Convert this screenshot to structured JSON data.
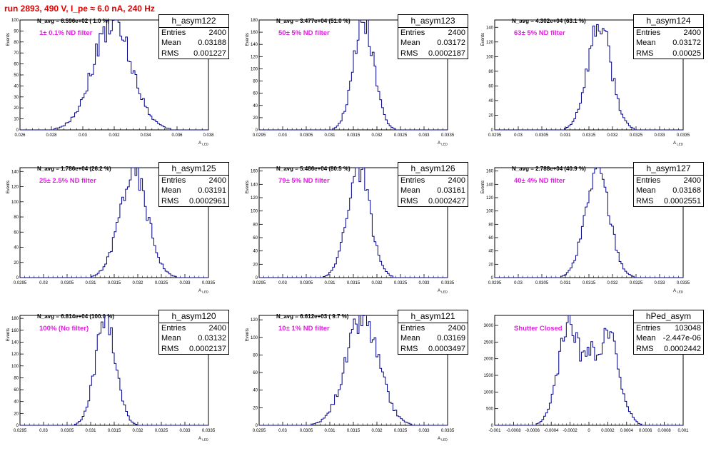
{
  "header": {
    "title": "run 2893,   490 V, I_pe ≈ 6.0 nA, 240 Hz"
  },
  "common": {
    "ylabel": "Events",
    "xlabel": "A_LED"
  },
  "colors": {
    "hist": "#00008b",
    "title": "#e00000",
    "filter": "#e020e0"
  },
  "panels": [
    {
      "name": "h_asym122",
      "entries": "2400",
      "mean": "0.03188",
      "rms": "0.001227",
      "navg": "N_avg = 6.596e+02 ( 1.0 %)",
      "filter": "1± 0.1% ND filter",
      "chart_data": {
        "type": "bar",
        "title": "h_asym122",
        "xlim": [
          0.026,
          0.038
        ],
        "ylim": [
          0,
          100
        ],
        "xticks": [
          "0.026",
          "0.028",
          "0.03",
          "0.032",
          "0.034",
          "0.036",
          "0.038"
        ],
        "yticks": [
          "0",
          "10",
          "20",
          "30",
          "40",
          "50",
          "60",
          "70",
          "80",
          "90",
          "100"
        ],
        "xlabel": "A_LED",
        "ylabel": "Events",
        "mean": 0.03188,
        "sigma": 0.001227,
        "peak": 98,
        "bins": 100,
        "seed": 122
      }
    },
    {
      "name": "h_asym123",
      "entries": "2400",
      "mean": "0.03172",
      "rms": "0.0002187",
      "navg": "N_avg = 3.477e+04 (51.0 %)",
      "filter": "50± 5% ND filter",
      "chart_data": {
        "type": "bar",
        "title": "h_asym123",
        "xlim": [
          0.0295,
          0.0335
        ],
        "ylim": [
          0,
          180
        ],
        "xticks": [
          "0.0295",
          "0.03",
          "0.0305",
          "0.031",
          "0.0315",
          "0.032",
          "0.0325",
          "0.033",
          "0.0335"
        ],
        "yticks": [
          "0",
          "20",
          "40",
          "60",
          "80",
          "100",
          "120",
          "140",
          "160",
          "180"
        ],
        "xlabel": "A_LED",
        "ylabel": "Events",
        "mean": 0.03172,
        "sigma": 0.0002187,
        "peak": 182,
        "bins": 100,
        "seed": 123
      }
    },
    {
      "name": "h_asym124",
      "entries": "2400",
      "mean": "0.03172",
      "rms": "0.00025",
      "navg": "N_avg = 4.302e+04 (63.1 %)",
      "filter": "63± 5% ND filter",
      "chart_data": {
        "type": "bar",
        "title": "h_asym124",
        "xlim": [
          0.0295,
          0.0335
        ],
        "ylim": [
          0,
          150
        ],
        "xticks": [
          "0.0295",
          "0.03",
          "0.0305",
          "0.031",
          "0.0315",
          "0.032",
          "0.0325",
          "0.033",
          "0.0335"
        ],
        "yticks": [
          "0",
          "20",
          "40",
          "60",
          "80",
          "100",
          "120",
          "140"
        ],
        "xlabel": "A_LED",
        "ylabel": "Events",
        "mean": 0.03172,
        "sigma": 0.00025,
        "peak": 145,
        "bins": 100,
        "seed": 124
      }
    },
    {
      "name": "h_asym125",
      "entries": "2400",
      "mean": "0.03191",
      "rms": "0.0002961",
      "navg": "N_avg = 1.786e+04 (26.2 %)",
      "filter": "25± 2.5% ND filter",
      "chart_data": {
        "type": "bar",
        "title": "h_asym125",
        "xlim": [
          0.0295,
          0.0335
        ],
        "ylim": [
          0,
          145
        ],
        "xticks": [
          "0.0295",
          "0.03",
          "0.0305",
          "0.031",
          "0.0315",
          "0.032",
          "0.0325",
          "0.033",
          "0.0335"
        ],
        "yticks": [
          "0",
          "20",
          "40",
          "60",
          "80",
          "100",
          "120",
          "140"
        ],
        "xlabel": "A_LED",
        "ylabel": "Events",
        "mean": 0.03191,
        "sigma": 0.0002961,
        "peak": 140,
        "bins": 100,
        "seed": 125
      }
    },
    {
      "name": "h_asym126",
      "entries": "2400",
      "mean": "0.03161",
      "rms": "0.0002427",
      "navg": "N_avg = 5.486e+04 (80.5 %)",
      "filter": "79± 5% ND filter",
      "chart_data": {
        "type": "bar",
        "title": "h_asym126",
        "xlim": [
          0.0295,
          0.0335
        ],
        "ylim": [
          0,
          165
        ],
        "xticks": [
          "0.0295",
          "0.03",
          "0.0305",
          "0.031",
          "0.0315",
          "0.032",
          "0.0325",
          "0.033",
          "0.0335"
        ],
        "yticks": [
          "0",
          "20",
          "40",
          "60",
          "80",
          "100",
          "120",
          "140",
          "160"
        ],
        "xlabel": "A_LED",
        "ylabel": "Events",
        "mean": 0.03161,
        "sigma": 0.0002427,
        "peak": 162,
        "bins": 100,
        "seed": 126
      }
    },
    {
      "name": "h_asym127",
      "entries": "2400",
      "mean": "0.03168",
      "rms": "0.0002551",
      "navg": "N_avg = 2.788e+04 (40.9 %)",
      "filter": "40± 4% ND filter",
      "chart_data": {
        "type": "bar",
        "title": "h_asym127",
        "xlim": [
          0.0295,
          0.0335
        ],
        "ylim": [
          0,
          165
        ],
        "xticks": [
          "0.0295",
          "0.03",
          "0.0305",
          "0.031",
          "0.0315",
          "0.032",
          "0.0325",
          "0.033",
          "0.0335"
        ],
        "yticks": [
          "0",
          "20",
          "40",
          "60",
          "80",
          "100",
          "120",
          "140",
          "160"
        ],
        "xlabel": "A_LED",
        "ylabel": "Events",
        "mean": 0.03168,
        "sigma": 0.0002551,
        "peak": 162,
        "bins": 100,
        "seed": 127
      }
    },
    {
      "name": "h_asym120",
      "entries": "2400",
      "mean": "0.03132",
      "rms": "0.0002137",
      "navg": "N_avg = 6.814e+04 (100.0 %)",
      "filter": "100% (No filter)",
      "chart_data": {
        "type": "bar",
        "title": "h_asym120",
        "xlim": [
          0.0295,
          0.0335
        ],
        "ylim": [
          0,
          185
        ],
        "xticks": [
          "0.0295",
          "0.03",
          "0.0305",
          "0.031",
          "0.0315",
          "0.032",
          "0.0325",
          "0.033",
          "0.0335"
        ],
        "yticks": [
          "0",
          "20",
          "40",
          "60",
          "80",
          "100",
          "120",
          "140",
          "160",
          "180"
        ],
        "xlabel": "A_LED",
        "ylabel": "Events",
        "mean": 0.03132,
        "sigma": 0.0002137,
        "peak": 183,
        "bins": 100,
        "seed": 120
      }
    },
    {
      "name": "h_asym121",
      "entries": "2400",
      "mean": "0.03169",
      "rms": "0.0003497",
      "navg": "N_avg = 6.612e+03 ( 9.7 %)",
      "filter": "10± 1% ND filter",
      "chart_data": {
        "type": "bar",
        "title": "h_asym121",
        "xlim": [
          0.0295,
          0.0335
        ],
        "ylim": [
          0,
          125
        ],
        "xticks": [
          "0.0295",
          "0.03",
          "0.0305",
          "0.031",
          "0.0315",
          "0.032",
          "0.0325",
          "0.033",
          "0.0335"
        ],
        "yticks": [
          "0",
          "20",
          "40",
          "60",
          "80",
          "100",
          "120"
        ],
        "xlabel": "A_LED",
        "ylabel": "Events",
        "mean": 0.03169,
        "sigma": 0.0003497,
        "peak": 120,
        "bins": 100,
        "seed": 121
      }
    },
    {
      "name": "hPed_asym",
      "entries": "103048",
      "mean": "-2.447e-06",
      "rms": "0.0002442",
      "navg": "",
      "filter": "Shutter Closed",
      "chart_data": {
        "type": "bar",
        "title": "hPed_asym",
        "xlim": [
          -0.001,
          0.001
        ],
        "ylim": [
          0,
          3300
        ],
        "xticks": [
          "-0.001",
          "-0.0008",
          "-0.0006",
          "-0.0004",
          "-0.0002",
          "0",
          "0.0002",
          "0.0004",
          "0.0006",
          "0.0008",
          "0.001"
        ],
        "yticks": [
          "0",
          "500",
          "1000",
          "1500",
          "2000",
          "2500",
          "3000"
        ],
        "xlabel": "",
        "ylabel": "",
        "bimodal": [
          -0.0002,
          0.0002
        ],
        "sigma": 0.00012,
        "peak": 3100,
        "bins": 100,
        "seed": 99
      }
    }
  ]
}
